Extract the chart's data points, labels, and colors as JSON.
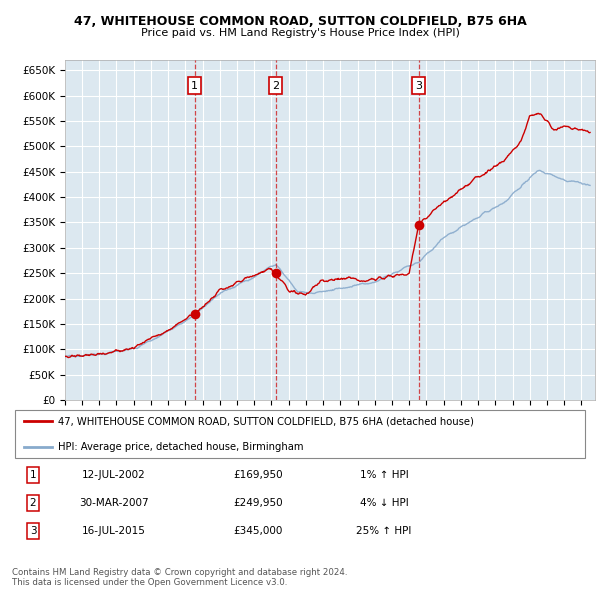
{
  "title1": "47, WHITEHOUSE COMMON ROAD, SUTTON COLDFIELD, B75 6HA",
  "title2": "Price paid vs. HM Land Registry's House Price Index (HPI)",
  "yticks": [
    0,
    50000,
    100000,
    150000,
    200000,
    250000,
    300000,
    350000,
    400000,
    450000,
    500000,
    550000,
    600000,
    650000
  ],
  "ylim": [
    0,
    670000
  ],
  "plot_bg_color": "#dce8f0",
  "grid_color": "#ffffff",
  "line_color_red": "#cc0000",
  "line_color_blue": "#88aacc",
  "vline_color": "#cc0000",
  "purchases": [
    {
      "date_num": 2002.54,
      "price": 169950,
      "label": "1"
    },
    {
      "date_num": 2007.24,
      "price": 249950,
      "label": "2"
    },
    {
      "date_num": 2015.54,
      "price": 345000,
      "label": "3"
    }
  ],
  "legend_line1": "47, WHITEHOUSE COMMON ROAD, SUTTON COLDFIELD, B75 6HA (detached house)",
  "legend_line2": "HPI: Average price, detached house, Birmingham",
  "table_rows": [
    {
      "num": "1",
      "date": "12-JUL-2002",
      "price": "£169,950",
      "hpi": "1% ↑ HPI"
    },
    {
      "num": "2",
      "date": "30-MAR-2007",
      "price": "£249,950",
      "hpi": "4% ↓ HPI"
    },
    {
      "num": "3",
      "date": "16-JUL-2015",
      "price": "£345,000",
      "hpi": "25% ↑ HPI"
    }
  ],
  "footer": "Contains HM Land Registry data © Crown copyright and database right 2024.\nThis data is licensed under the Open Government Licence v3.0.",
  "xmin": 1995.0,
  "xmax": 2025.8
}
